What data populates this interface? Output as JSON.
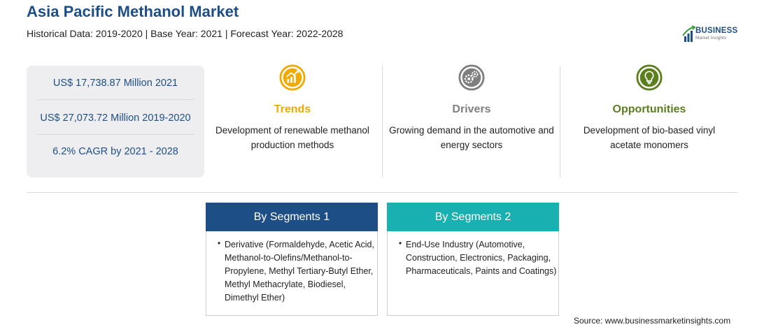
{
  "header": {
    "title": "Asia Pacific Methanol Market",
    "subtitle": "Historical Data: 2019-2020 | Base Year: 2021 | Forecast Year: 2022-2028"
  },
  "logo": {
    "name": "BUSINESS",
    "tagline": "Market Insights"
  },
  "stats": [
    {
      "text": "US$ 17,738.87 Million 2021"
    },
    {
      "text": "US$ 27,073.72 Million 2019-2020"
    },
    {
      "text": "6.2% CAGR by 2021 - 2028"
    }
  ],
  "columns": [
    {
      "label": "Trends",
      "description": "Development of renewable methanol production methods",
      "color": "#f2a900",
      "icon": "chart-trend-icon"
    },
    {
      "label": "Drivers",
      "description": "Growing demand in the automotive and energy sectors",
      "color": "#7f7f7f",
      "icon": "gears-icon"
    },
    {
      "label": "Opportunities",
      "description": "Development of bio-based vinyl acetate monomers",
      "color": "#5b7f1d",
      "icon": "lightbulb-icon"
    }
  ],
  "segments": [
    {
      "title": "By Segments 1",
      "color": "#1d4f86",
      "item": "Derivative (Formaldehyde, Acetic Acid, Methanol-to-Olefins/Methanol-to-Propylene, Methyl Tertiary-Butyl Ether, Methyl Methacrylate, Biodiesel, Dimethyl Ether)"
    },
    {
      "title": "By Segments 2",
      "color": "#18b0b0",
      "item": "End-Use Industry (Automotive, Construction, Electronics, Packaging, Pharmaceuticals, Paints and Coatings)"
    }
  ],
  "source": "Source: www.businessmarketinsights.com"
}
